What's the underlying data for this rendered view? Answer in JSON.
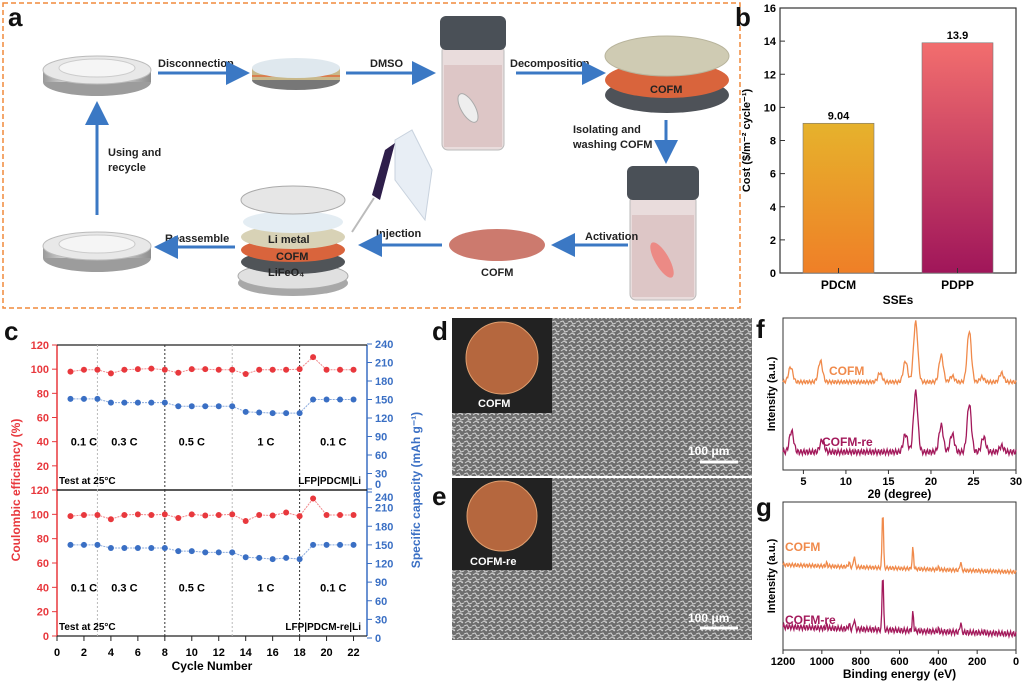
{
  "panel_labels": {
    "a": "a",
    "b": "b",
    "c": "c",
    "d": "d",
    "e": "e",
    "f": "f",
    "g": "g"
  },
  "scheme": {
    "steps": {
      "disconnection": "Disconnection",
      "dmso": "DMSO",
      "decomposition": "Decomposition",
      "isolating_1": "Isolating and",
      "isolating_2": "washing COFM",
      "activation": "Activation",
      "injection": "Injection",
      "reassemble": "Reassemble",
      "using_1": "Using and",
      "using_2": "recycle"
    },
    "layer_cofm": "COFM",
    "disc_cofm": "COFM",
    "stack": {
      "li": "Li metal",
      "cofm": "COFM",
      "lfp": "LiFeO₄"
    },
    "colors": {
      "border": "#f08a3c",
      "arrow": "#3b78c4",
      "cofm": "#d9643c"
    }
  },
  "chart_data": [
    {
      "id": "b",
      "type": "bar",
      "categories": [
        "PDCM",
        "PDPP"
      ],
      "values": [
        9.04,
        13.9
      ],
      "value_labels": [
        "9.04",
        "13.9"
      ],
      "xlabel": "SSEs",
      "ylabel": "Cost ($/m⁻² cycle⁻¹)",
      "ylim": [
        0,
        16
      ],
      "yticks": [
        "0",
        "2",
        "4",
        "6",
        "8",
        "10",
        "12",
        "14",
        "16"
      ],
      "colors": [
        [
          "#e6b22c",
          "#ef7f27"
        ],
        [
          "#f26e6e",
          "#a0165a"
        ]
      ]
    },
    {
      "id": "c",
      "type": "line",
      "xlabel": "Cycle Number",
      "ylabel_left": "Coulombic efficiency (%)",
      "ylabel_right": "Specific capacity (mAh g⁻¹)",
      "xlim": [
        0,
        23
      ],
      "xticks": [
        "0",
        "2",
        "4",
        "6",
        "8",
        "10",
        "12",
        "14",
        "16",
        "18",
        "20",
        "22"
      ],
      "yticks_left": [
        "0",
        "20",
        "40",
        "60",
        "80",
        "100",
        "120"
      ],
      "yticks_right": [
        "0",
        "30",
        "60",
        "90",
        "120",
        "150",
        "180",
        "210",
        "240"
      ],
      "ylim_left": [
        0,
        120
      ],
      "ylim_right": [
        0,
        240
      ],
      "rate_labels": [
        "0.1 C",
        "0.3 C",
        "0.5 C",
        "1 C",
        "0.1 C"
      ],
      "boundaries": [
        3,
        8,
        13,
        18
      ],
      "colors": {
        "ce": "#e8383d",
        "cap": "#3a6fc4"
      },
      "subplots": [
        {
          "note": "Test at 25°C",
          "cell": "LFP|PDCM|Li",
          "x": [
            1,
            2,
            3,
            4,
            5,
            6,
            7,
            8,
            9,
            10,
            11,
            12,
            13,
            14,
            15,
            16,
            17,
            18,
            19,
            20,
            21,
            22
          ],
          "ce": [
            98,
            99.5,
            99.5,
            96.5,
            99.5,
            100,
            100.5,
            99.5,
            97,
            100,
            100,
            99.5,
            99.5,
            96,
            99.5,
            99.5,
            99.5,
            100,
            110,
            99.5,
            99.5,
            99.5
          ],
          "capacity": [
            151,
            151,
            151,
            145,
            145,
            145,
            145,
            145,
            139,
            139,
            139,
            139,
            139,
            130,
            129,
            128,
            128,
            128,
            150,
            150,
            150,
            150
          ]
        },
        {
          "note": "Test at 25°C",
          "cell": "LFP|PDCM-re|Li",
          "x": [
            1,
            2,
            3,
            4,
            5,
            6,
            7,
            8,
            9,
            10,
            11,
            12,
            13,
            14,
            15,
            16,
            17,
            18,
            19,
            20,
            21,
            22
          ],
          "ce": [
            98.5,
            99.5,
            99.5,
            96,
            99.5,
            100,
            99.5,
            100,
            97,
            100,
            99,
            99.5,
            100,
            94.5,
            99.5,
            99,
            101.5,
            98.5,
            113,
            99.5,
            99.5,
            99.5
          ],
          "capacity": [
            150,
            150,
            150,
            145,
            145,
            145,
            145,
            145,
            140,
            140,
            138,
            138,
            138,
            130,
            129,
            127,
            129,
            127,
            150,
            150,
            150,
            150
          ]
        }
      ]
    },
    {
      "id": "f",
      "type": "line",
      "xlabel": "2θ (degree)",
      "ylabel": "Intensity (a.u.)",
      "xlim": [
        2.6,
        30
      ],
      "xticks": [
        "5",
        "10",
        "15",
        "20",
        "25",
        "30"
      ],
      "series": [
        {
          "name": "COFM",
          "color": "#f08a4b",
          "peaks": [
            [
              3.5,
              0.25
            ],
            [
              7.0,
              0.35
            ],
            [
              14.0,
              0.15
            ],
            [
              17.0,
              0.35
            ],
            [
              18.2,
              1.0
            ],
            [
              21.2,
              0.45
            ],
            [
              22.5,
              0.1
            ],
            [
              24.5,
              0.85
            ],
            [
              26,
              0.08
            ],
            [
              28.3,
              0.15
            ]
          ]
        },
        {
          "name": "COFM-re",
          "color": "#a3195b",
          "peaks": [
            [
              3.6,
              0.35
            ],
            [
              7.2,
              0.2
            ],
            [
              17.0,
              0.3
            ],
            [
              18.2,
              1.0
            ],
            [
              21.2,
              0.45
            ],
            [
              22.5,
              0.3
            ],
            [
              24.5,
              0.8
            ],
            [
              26.2,
              0.25
            ],
            [
              28.3,
              0.1
            ]
          ]
        }
      ]
    },
    {
      "id": "g",
      "type": "line",
      "xlabel": "Binding energy (eV)",
      "ylabel": "Intensity (a.u.)",
      "xlim": [
        1200,
        0
      ],
      "xticks": [
        "1200",
        "1000",
        "800",
        "600",
        "400",
        "200",
        "0"
      ],
      "series": [
        {
          "name": "COFM",
          "color": "#f08a4b",
          "peaks": [
            [
              975,
              0.05
            ],
            [
              860,
              0.08
            ],
            [
              833,
              0.2
            ],
            [
              686,
              1.0
            ],
            [
              531,
              0.35
            ],
            [
              400,
              0.04
            ],
            [
              285,
              0.15
            ]
          ]
        },
        {
          "name": "COFM-re",
          "color": "#a3195b",
          "peaks": [
            [
              975,
              0.05
            ],
            [
              860,
              0.08
            ],
            [
              833,
              0.18
            ],
            [
              686,
              1.0
            ],
            [
              531,
              0.3
            ],
            [
              400,
              0.04
            ],
            [
              285,
              0.18
            ],
            [
              165,
              0.03
            ]
          ]
        }
      ]
    }
  ],
  "sem": {
    "d_label": "COFM",
    "e_label": "COFM-re",
    "scale_d": "100 μm",
    "scale_e": "100 μm"
  }
}
